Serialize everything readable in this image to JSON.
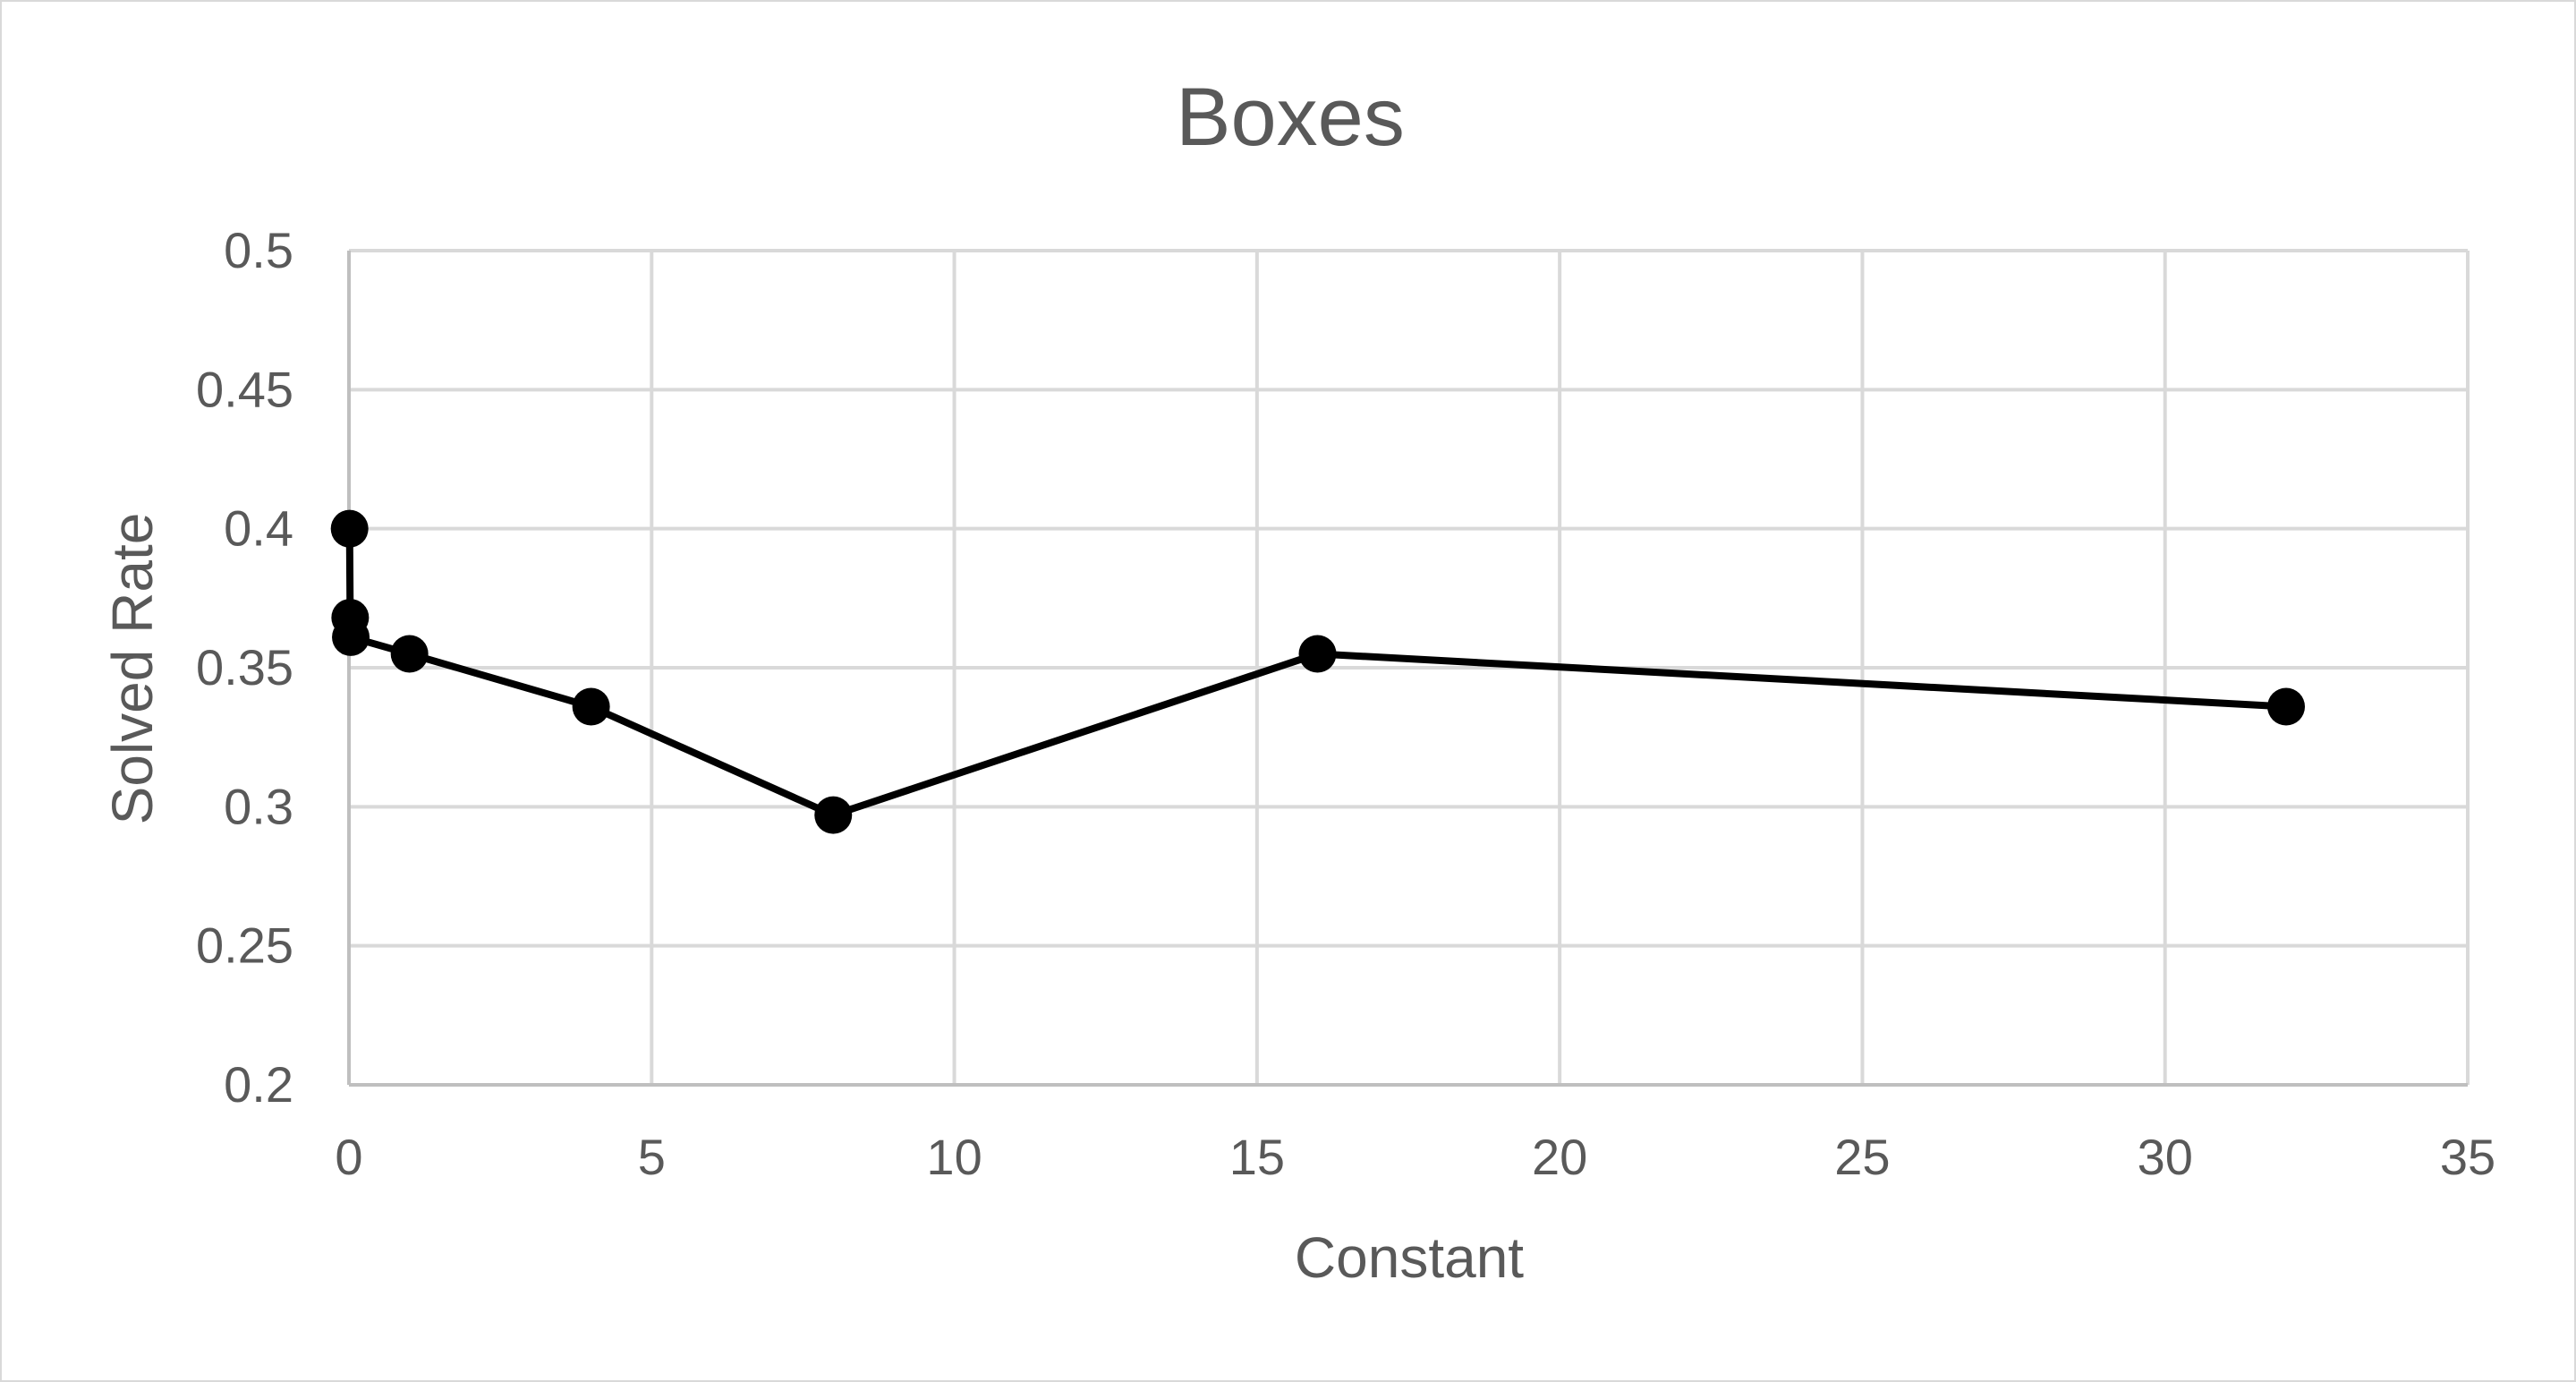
{
  "chart_data": {
    "type": "scatter",
    "title": "Boxes",
    "xlabel": "Constant",
    "ylabel": "Solved Rate",
    "xlim": [
      0,
      35
    ],
    "ylim": [
      0.2,
      0.5
    ],
    "x_ticks": [
      0,
      5,
      10,
      15,
      20,
      25,
      30,
      35
    ],
    "y_ticks": [
      0.2,
      0.25,
      0.3,
      0.35,
      0.4,
      0.45,
      0.5
    ],
    "x_tick_labels": [
      "0",
      "5",
      "10",
      "15",
      "20",
      "25",
      "30",
      "35"
    ],
    "y_tick_labels": [
      "0.2",
      "0.25",
      "0.3",
      "0.35",
      "0.4",
      "0.45",
      "0.5"
    ],
    "grid": true,
    "legend": "none",
    "series": [
      {
        "color": "#000000",
        "lines": true,
        "markers": true,
        "points": [
          {
            "x": 0.01,
            "y": 0.4
          },
          {
            "x": 0.02,
            "y": 0.368
          },
          {
            "x": 0.03,
            "y": 0.361
          },
          {
            "x": 1,
            "y": 0.355
          },
          {
            "x": 4,
            "y": 0.336
          },
          {
            "x": 8,
            "y": 0.297
          },
          {
            "x": 16,
            "y": 0.355
          },
          {
            "x": 32,
            "y": 0.336
          }
        ]
      }
    ]
  }
}
